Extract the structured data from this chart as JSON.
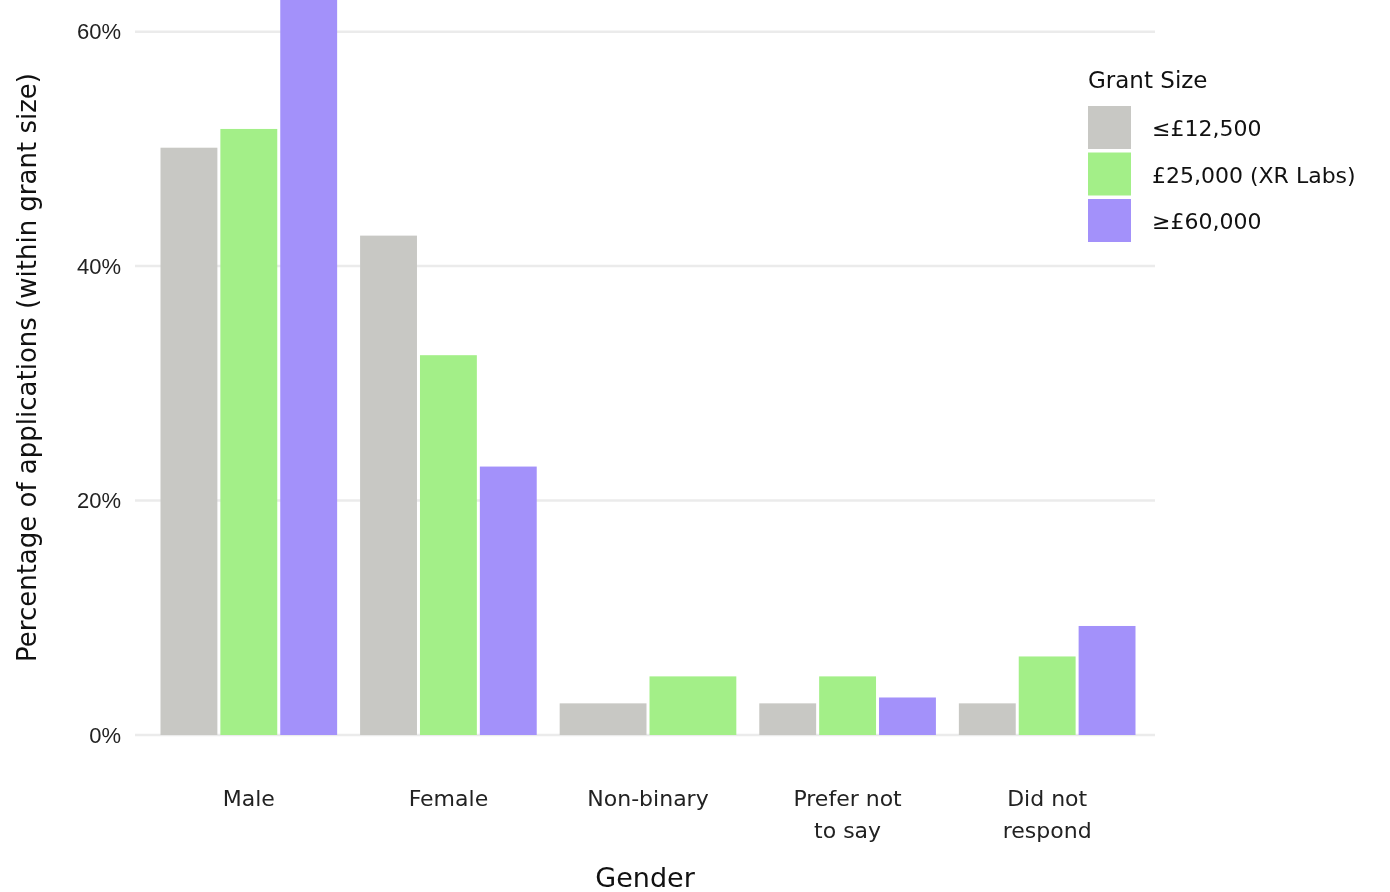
{
  "chart_data": {
    "type": "bar",
    "xlabel": "Gender",
    "ylabel": "Percentage of applications (within grant size)",
    "legend_title": "Grant Size",
    "categories": [
      "Male",
      "Female",
      "Non-binary",
      "Prefer not to say",
      "Did not respond"
    ],
    "series": [
      {
        "name": "≤£12,500",
        "color": "#c8c8c4",
        "values": [
          50.1,
          42.6,
          2.7,
          2.7,
          2.7
        ]
      },
      {
        "name": "£25,000 (XR Labs)",
        "color": "#a3ef88",
        "values": [
          51.7,
          32.4,
          5.0,
          5.0,
          6.7
        ]
      },
      {
        "name": "≥£60,000",
        "color": "#a391fa",
        "values": [
          62.7,
          22.9,
          null,
          3.2,
          9.3
        ]
      }
    ],
    "ylim": [
      0,
      62.7
    ],
    "yticks": [
      {
        "value": 0,
        "label": "0%"
      },
      {
        "value": 20,
        "label": "20%"
      },
      {
        "value": 40,
        "label": "40%"
      },
      {
        "value": 60,
        "label": "60%"
      }
    ],
    "grid": "y",
    "legend": "top right"
  }
}
